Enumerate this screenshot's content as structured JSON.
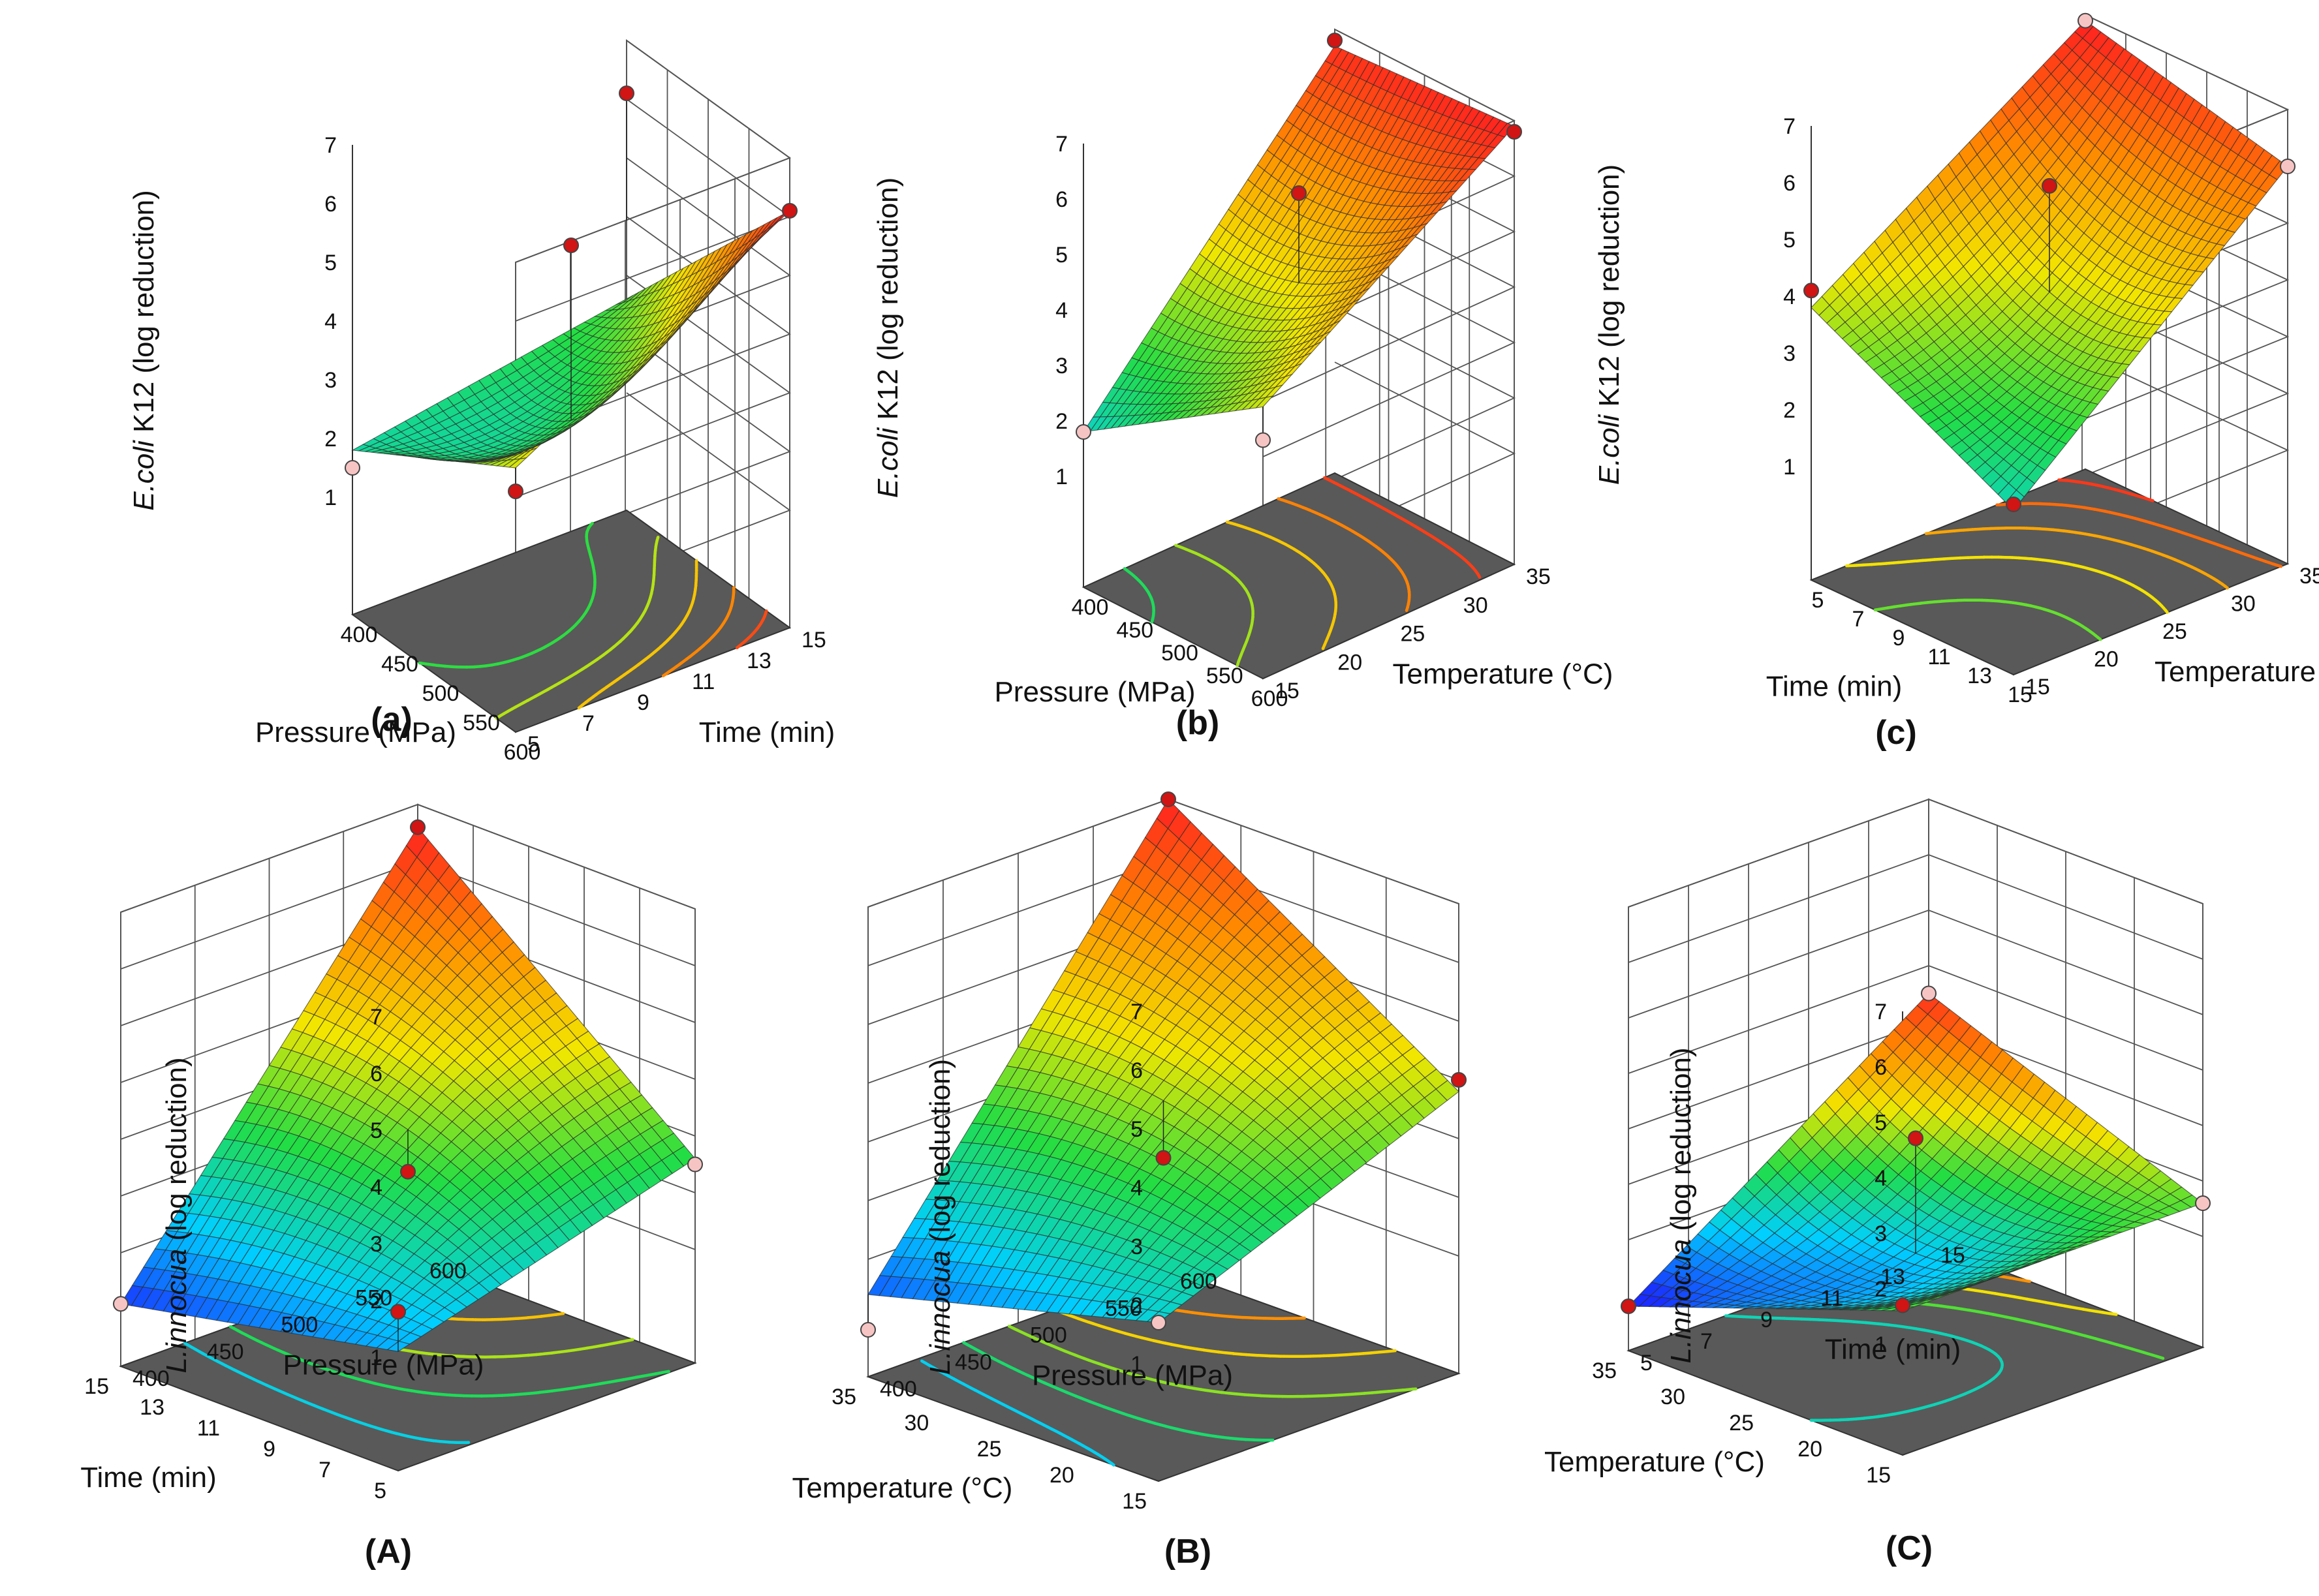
{
  "colors": {
    "floor": "#595959",
    "grid": "#555555",
    "mesh": "#2b2b2b",
    "point_red": "#d11414",
    "point_pink": "#f7c4c4",
    "colormap": [
      "#1a2cff",
      "#00cfff",
      "#22dd44",
      "#f2e600",
      "#ff8800",
      "#ff2020"
    ]
  },
  "chart_data": [
    {
      "id": "a",
      "panel_label": "(a)",
      "type": "surface3d",
      "z_label_italic": "E.coli",
      "z_label_rest": " K12 (log reduction)",
      "zlim": [
        1,
        7
      ],
      "z_ticks": [
        "1",
        "2",
        "3",
        "4",
        "5",
        "6",
        "7"
      ],
      "x_label": "Pressure (MPa)",
      "x_ticks": [
        "400",
        "450",
        "500",
        "550",
        "600"
      ],
      "y_label": "Time (min)",
      "y_ticks": [
        "5",
        "7",
        "9",
        "11",
        "13",
        "15"
      ],
      "surface_corners_z": {
        "x0y0": 1.8,
        "x1y0": 3.5,
        "x0y1": 2.6,
        "x1y1": 6.1
      },
      "surface_curvature": -1.2,
      "surface_peak": 6.1,
      "design_points": [
        {
          "x": 0,
          "y": 0,
          "z": 1.5,
          "kind": "pink"
        },
        {
          "x": 1,
          "y": 0,
          "z": 3.1,
          "kind": "red"
        },
        {
          "x": 0,
          "y": 1,
          "z": 6.1,
          "kind": "red"
        },
        {
          "x": 1,
          "y": 1,
          "z": 6.1,
          "kind": "red"
        },
        {
          "x": 0.5,
          "y": 0.5,
          "z": 5.4,
          "kind": "red"
        }
      ],
      "contour_levels": [
        2.5,
        3.3,
        4.1,
        4.9,
        5.6
      ]
    },
    {
      "id": "b",
      "panel_label": "(b)",
      "type": "surface3d",
      "z_label_italic": "E.coli",
      "z_label_rest": " K12 (log reduction)",
      "zlim": [
        1,
        7
      ],
      "z_ticks": [
        "1",
        "2",
        "3",
        "4",
        "5",
        "6",
        "7"
      ],
      "x_label": "Pressure (MPa)",
      "x_ticks": [
        "400",
        "450",
        "500",
        "550",
        "600"
      ],
      "y_label": "Temperature (°C)",
      "y_ticks": [
        "15",
        "20",
        "25",
        "30",
        "35"
      ],
      "surface_corners_z": {
        "x0y0": 1.8,
        "x1y0": 3.9,
        "x0y1": 6.7,
        "x1y1": 6.9
      },
      "surface_curvature": -0.6,
      "surface_peak": 6.9,
      "design_points": [
        {
          "x": 0,
          "y": 0,
          "z": 1.8,
          "kind": "pink"
        },
        {
          "x": 1,
          "y": 0,
          "z": 3.3,
          "kind": "pink"
        },
        {
          "x": 0,
          "y": 1,
          "z": 6.8,
          "kind": "red"
        },
        {
          "x": 1,
          "y": 1,
          "z": 6.8,
          "kind": "red"
        },
        {
          "x": 0.5,
          "y": 0.5,
          "z": 5.9,
          "kind": "red"
        }
      ],
      "contour_levels": [
        2.6,
        3.6,
        4.6,
        5.6,
        6.5
      ]
    },
    {
      "id": "c",
      "panel_label": "(c)",
      "type": "surface3d",
      "z_label_italic": "E.coli",
      "z_label_rest": " K12 (log reduction)",
      "zlim": [
        1,
        7
      ],
      "z_ticks": [
        "1",
        "2",
        "3",
        "4",
        "5",
        "6",
        "7"
      ],
      "x_label": "Time (min)",
      "x_ticks": [
        "5",
        "7",
        "9",
        "11",
        "13",
        "15"
      ],
      "y_label": "Temperature (°C)",
      "y_ticks": [
        "15",
        "20",
        "25",
        "30",
        "35"
      ],
      "surface_corners_z": {
        "x0y0": 3.8,
        "x1y0": 1.9,
        "x0y1": 6.9,
        "x1y1": 6.0
      },
      "surface_curvature": -0.8,
      "surface_peak": 6.9,
      "design_points": [
        {
          "x": 0,
          "y": 0,
          "z": 4.1,
          "kind": "red"
        },
        {
          "x": 1,
          "y": 0,
          "z": 2.0,
          "kind": "red"
        },
        {
          "x": 0,
          "y": 1,
          "z": 6.9,
          "kind": "pink"
        },
        {
          "x": 1,
          "y": 1,
          "z": 6.0,
          "kind": "pink"
        },
        {
          "x": 0.5,
          "y": 0.5,
          "z": 5.8,
          "kind": "red"
        }
      ],
      "contour_levels": [
        3.2,
        4.2,
        5.1,
        5.9,
        6.6
      ]
    },
    {
      "id": "A",
      "panel_label": "(A)",
      "type": "surface3d",
      "z_label_italic": "L.innocua",
      "z_label_rest": " (log reduction)",
      "zlim": [
        1,
        7
      ],
      "z_ticks": [
        "1",
        "2",
        "3",
        "4",
        "5",
        "6",
        "7"
      ],
      "x_label": "Time (min)",
      "x_ticks": [
        "5",
        "7",
        "9",
        "11",
        "13",
        "15"
      ],
      "y_label": "Pressure (MPa)",
      "y_ticks": [
        "400",
        "450",
        "500",
        "550",
        "600"
      ],
      "surface_corners_z": {
        "x0y0": 1.1,
        "x1y0": 0.1,
        "x0y1": 2.6,
        "x1y1": 6.6
      },
      "surface_curvature": 0.6,
      "surface_peak": 6.6,
      "design_points": [
        {
          "x": 0,
          "y": 0,
          "z": 1.8,
          "kind": "red"
        },
        {
          "x": 1,
          "y": 0,
          "z": 0.1,
          "kind": "pink"
        },
        {
          "x": 0,
          "y": 1,
          "z": 2.5,
          "kind": "pink"
        },
        {
          "x": 1,
          "y": 1,
          "z": 6.6,
          "kind": "red"
        },
        {
          "x": 0.5,
          "y": 0.5,
          "z": 2.4,
          "kind": "red"
        }
      ],
      "contour_levels": [
        1.5,
        2.5,
        3.5,
        4.5,
        5.5
      ]
    },
    {
      "id": "B",
      "panel_label": "(B)",
      "type": "surface3d",
      "z_label_italic": "L.innocua",
      "z_label_rest": " (log reduction)",
      "zlim": [
        1,
        7
      ],
      "z_ticks": [
        "1",
        "2",
        "3",
        "4",
        "5",
        "6",
        "7"
      ],
      "x_label": "Temperature (°C)",
      "x_ticks": [
        "15",
        "20",
        "25",
        "30",
        "35"
      ],
      "y_label": "Pressure (MPa)",
      "y_ticks": [
        "400",
        "450",
        "500",
        "550",
        "600"
      ],
      "surface_corners_z": {
        "x0y0": 1.7,
        "x1y0": 0.4,
        "x0y1": 3.8,
        "x1y1": 7.0
      },
      "surface_curvature": 0.5,
      "surface_peak": 7.0,
      "design_points": [
        {
          "x": 0,
          "y": 0,
          "z": 1.7,
          "kind": "pink"
        },
        {
          "x": 1,
          "y": 0,
          "z": -0.2,
          "kind": "pink"
        },
        {
          "x": 0,
          "y": 1,
          "z": 4.0,
          "kind": "red"
        },
        {
          "x": 1,
          "y": 1,
          "z": 7.0,
          "kind": "red"
        },
        {
          "x": 0.5,
          "y": 0.5,
          "z": 2.7,
          "kind": "red"
        }
      ],
      "contour_levels": [
        1.5,
        2.5,
        3.5,
        4.5,
        5.5
      ]
    },
    {
      "id": "C",
      "panel_label": "(C)",
      "type": "surface3d",
      "z_label_italic": "L.innocua",
      "z_label_rest": " (log reduction)",
      "zlim": [
        1,
        7
      ],
      "z_ticks": [
        "1",
        "2",
        "3",
        "4",
        "5",
        "6",
        "7"
      ],
      "x_label": "Temperature (°C)",
      "x_ticks": [
        "15",
        "20",
        "25",
        "30",
        "35"
      ],
      "y_label": "Time (min)",
      "y_ticks": [
        "5",
        "7",
        "9",
        "11",
        "13",
        "15"
      ],
      "surface_corners_z": {
        "x0y0": 1.6,
        "x1y0": -0.2,
        "x0y1": 1.6,
        "x1y1": 3.5
      },
      "surface_curvature": -1.0,
      "surface_peak": 3.6,
      "design_points": [
        {
          "x": 0,
          "y": 0,
          "z": 1.7,
          "kind": "red"
        },
        {
          "x": 1,
          "y": 0,
          "z": -0.2,
          "kind": "red"
        },
        {
          "x": 0,
          "y": 1,
          "z": 1.6,
          "kind": "pink"
        },
        {
          "x": 1,
          "y": 1,
          "z": 3.5,
          "kind": "pink"
        },
        {
          "x": 0.5,
          "y": 0.5,
          "z": 2.8,
          "kind": "red"
        }
      ],
      "contour_levels": [
        1.0,
        1.6,
        2.2,
        2.8,
        3.3
      ]
    }
  ]
}
